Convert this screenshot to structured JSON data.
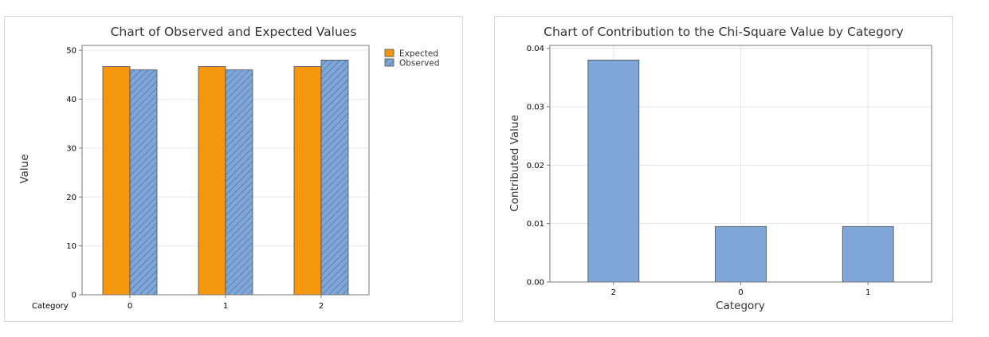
{
  "chart_data": [
    {
      "type": "bar",
      "title": "Chart of Observed and Expected Values",
      "ylabel": "Value",
      "xlabel": "Category",
      "categories": [
        "0",
        "1",
        "2"
      ],
      "series": [
        {
          "name": "Expected",
          "values": [
            46.67,
            46.67,
            46.67
          ],
          "color": "#f5960f"
        },
        {
          "name": "Observed",
          "values": [
            46,
            46,
            48
          ],
          "color": "#7ea6d8",
          "pattern": "hatch"
        }
      ],
      "ylim": [
        0,
        51
      ],
      "yticks": [
        0,
        10,
        20,
        30,
        40,
        50
      ],
      "grid": true,
      "legend": "top-right-outside"
    },
    {
      "type": "bar",
      "title": "Chart of Contribution to the Chi-Square Value by Category",
      "ylabel": "Contributed Value",
      "xlabel": "Category",
      "categories": [
        "2",
        "0",
        "1"
      ],
      "values": [
        0.038,
        0.0095,
        0.0095
      ],
      "color": "#7ea6d8",
      "ylim": [
        0,
        0.0405
      ],
      "yticks": [
        "0.00",
        "0.01",
        "0.02",
        "0.03",
        "0.04"
      ],
      "grid": true
    }
  ]
}
